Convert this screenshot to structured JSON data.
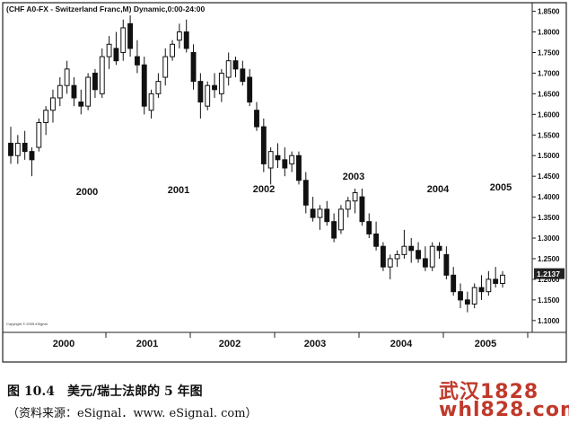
{
  "chart_data": {
    "type": "candlestick",
    "title": "(CHF A0-FX - Switzerland Franc,M) Dynamic,0:00-24:00",
    "footnote": "Copyright © 2005 eSignal",
    "ylim": [
      1.08,
      1.86
    ],
    "yticks": [
      "1.8500",
      "1.8000",
      "1.7500",
      "1.7000",
      "1.6500",
      "1.6000",
      "1.5500",
      "1.5000",
      "1.4500",
      "1.4000",
      "1.3500",
      "1.3000",
      "1.2500",
      "1.2000",
      "1.1500",
      "1.1000"
    ],
    "last_price": "1.2137",
    "x_axis_years": [
      "2000",
      "2001",
      "2002",
      "2003",
      "2004",
      "2005"
    ],
    "in_chart_year_labels": [
      "2000",
      "2001",
      "2002",
      "2003",
      "2004",
      "2005"
    ],
    "candles": [
      [
        1.53,
        1.57,
        1.48,
        1.5
      ],
      [
        1.5,
        1.55,
        1.48,
        1.53
      ],
      [
        1.53,
        1.56,
        1.49,
        1.51
      ],
      [
        1.51,
        1.52,
        1.45,
        1.49
      ],
      [
        1.52,
        1.59,
        1.51,
        1.58
      ],
      [
        1.58,
        1.62,
        1.55,
        1.61
      ],
      [
        1.61,
        1.66,
        1.58,
        1.64
      ],
      [
        1.64,
        1.69,
        1.62,
        1.67
      ],
      [
        1.67,
        1.73,
        1.65,
        1.71
      ],
      [
        1.67,
        1.69,
        1.62,
        1.64
      ],
      [
        1.63,
        1.66,
        1.6,
        1.62
      ],
      [
        1.62,
        1.7,
        1.61,
        1.69
      ],
      [
        1.7,
        1.71,
        1.64,
        1.66
      ],
      [
        1.65,
        1.76,
        1.64,
        1.74
      ],
      [
        1.74,
        1.79,
        1.71,
        1.77
      ],
      [
        1.76,
        1.8,
        1.72,
        1.73
      ],
      [
        1.75,
        1.83,
        1.73,
        1.81
      ],
      [
        1.82,
        1.84,
        1.74,
        1.76
      ],
      [
        1.74,
        1.78,
        1.7,
        1.72
      ],
      [
        1.72,
        1.74,
        1.6,
        1.62
      ],
      [
        1.61,
        1.66,
        1.59,
        1.65
      ],
      [
        1.65,
        1.7,
        1.64,
        1.68
      ],
      [
        1.69,
        1.76,
        1.67,
        1.74
      ],
      [
        1.74,
        1.78,
        1.73,
        1.77
      ],
      [
        1.78,
        1.82,
        1.76,
        1.8
      ],
      [
        1.8,
        1.83,
        1.75,
        1.76
      ],
      [
        1.75,
        1.77,
        1.66,
        1.68
      ],
      [
        1.68,
        1.7,
        1.59,
        1.63
      ],
      [
        1.62,
        1.68,
        1.61,
        1.67
      ],
      [
        1.67,
        1.7,
        1.64,
        1.66
      ],
      [
        1.65,
        1.71,
        1.63,
        1.7
      ],
      [
        1.69,
        1.75,
        1.67,
        1.73
      ],
      [
        1.73,
        1.74,
        1.69,
        1.71
      ],
      [
        1.71,
        1.73,
        1.67,
        1.68
      ],
      [
        1.69,
        1.71,
        1.62,
        1.63
      ],
      [
        1.61,
        1.63,
        1.56,
        1.57
      ],
      [
        1.57,
        1.59,
        1.46,
        1.48
      ],
      [
        1.47,
        1.52,
        1.43,
        1.51
      ],
      [
        1.5,
        1.53,
        1.47,
        1.49
      ],
      [
        1.49,
        1.52,
        1.45,
        1.47
      ],
      [
        1.48,
        1.51,
        1.46,
        1.5
      ],
      [
        1.5,
        1.51,
        1.43,
        1.44
      ],
      [
        1.44,
        1.46,
        1.36,
        1.38
      ],
      [
        1.37,
        1.4,
        1.34,
        1.35
      ],
      [
        1.35,
        1.38,
        1.32,
        1.37
      ],
      [
        1.37,
        1.39,
        1.33,
        1.34
      ],
      [
        1.34,
        1.36,
        1.29,
        1.3
      ],
      [
        1.32,
        1.38,
        1.31,
        1.37
      ],
      [
        1.37,
        1.4,
        1.35,
        1.39
      ],
      [
        1.39,
        1.42,
        1.36,
        1.41
      ],
      [
        1.4,
        1.42,
        1.33,
        1.34
      ],
      [
        1.34,
        1.36,
        1.3,
        1.31
      ],
      [
        1.31,
        1.34,
        1.27,
        1.28
      ],
      [
        1.28,
        1.29,
        1.22,
        1.23
      ],
      [
        1.23,
        1.26,
        1.2,
        1.25
      ],
      [
        1.25,
        1.27,
        1.23,
        1.26
      ],
      [
        1.26,
        1.32,
        1.25,
        1.28
      ],
      [
        1.28,
        1.3,
        1.24,
        1.27
      ],
      [
        1.27,
        1.29,
        1.24,
        1.25
      ],
      [
        1.25,
        1.28,
        1.22,
        1.23
      ],
      [
        1.23,
        1.29,
        1.22,
        1.28
      ],
      [
        1.28,
        1.29,
        1.25,
        1.27
      ],
      [
        1.26,
        1.28,
        1.2,
        1.21
      ],
      [
        1.21,
        1.23,
        1.16,
        1.17
      ],
      [
        1.17,
        1.19,
        1.13,
        1.15
      ],
      [
        1.15,
        1.17,
        1.12,
        1.14
      ],
      [
        1.14,
        1.19,
        1.13,
        1.18
      ],
      [
        1.18,
        1.21,
        1.15,
        1.17
      ],
      [
        1.17,
        1.22,
        1.16,
        1.2
      ],
      [
        1.2,
        1.23,
        1.18,
        1.19
      ],
      [
        1.19,
        1.22,
        1.18,
        1.21
      ]
    ],
    "xlabel": "",
    "ylabel": ""
  },
  "caption": {
    "figure": "图 10.4　美元/瑞士法郎的 5 年图",
    "source": "（资料来源：eSignal．www. eSignal. com）"
  },
  "watermark": {
    "line1": "武汉1828",
    "line2": "whl828.com"
  }
}
